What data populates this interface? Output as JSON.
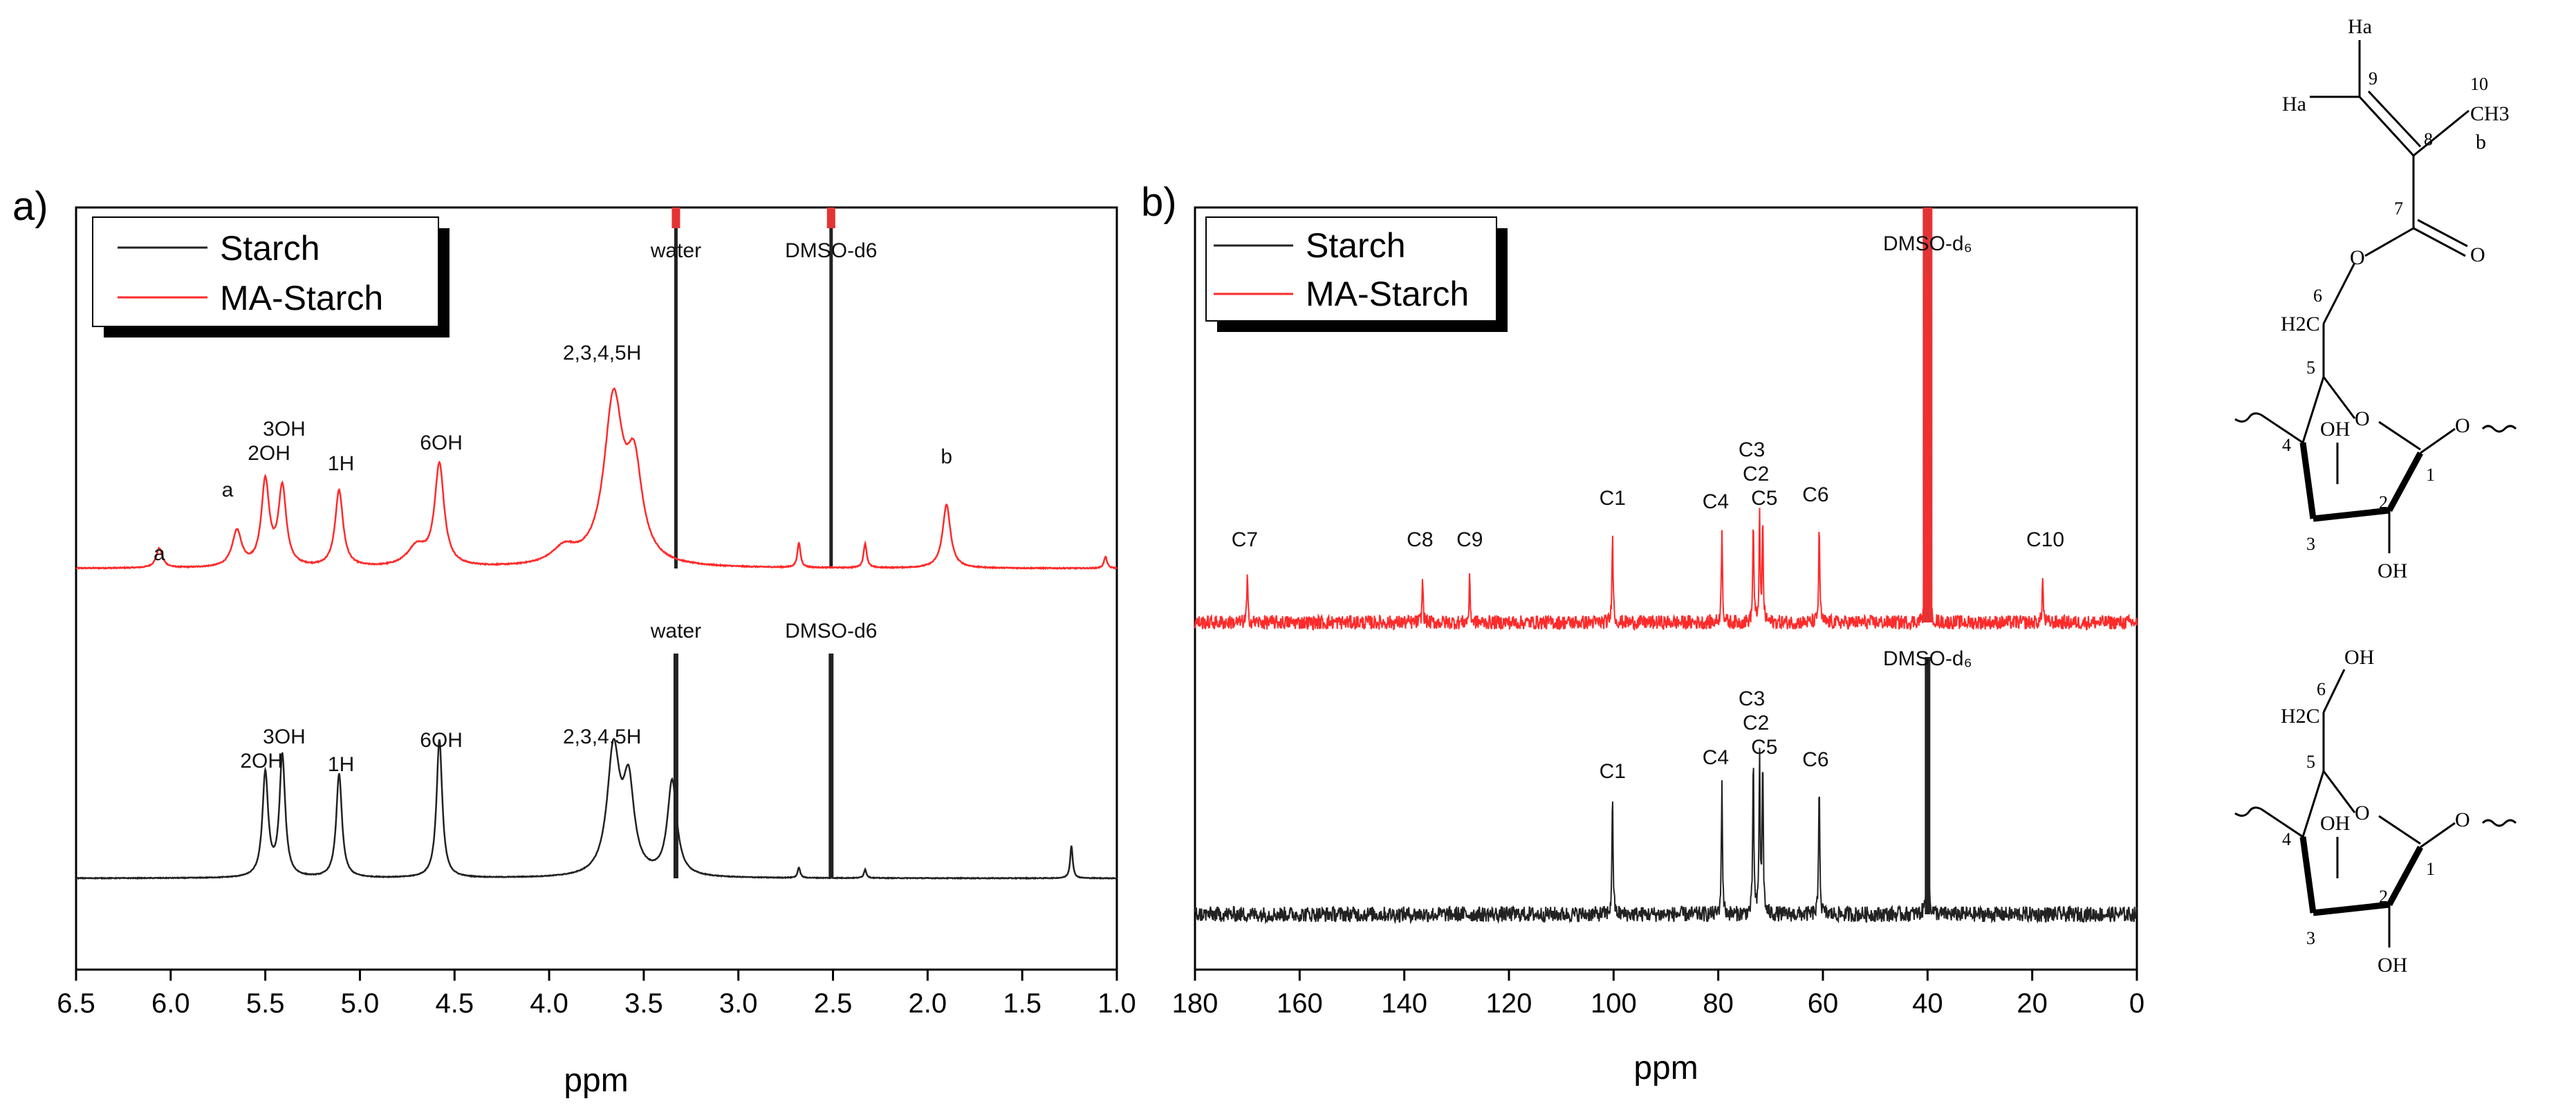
{
  "colors": {
    "starch": "#222222",
    "ma_starch": "#ff2a2a",
    "solvent_band": "#e33434",
    "frame": "#000000"
  },
  "chart_data": [
    {
      "type": "line",
      "panel_label": "a)",
      "xlabel": "ppm",
      "xlim": [
        6.5,
        1.0
      ],
      "x_reversed": true,
      "x_ticks": [
        "6.5",
        "6.0",
        "5.5",
        "5.0",
        "4.5",
        "4.0",
        "3.5",
        "3.0",
        "2.5",
        "2.0",
        "1.5",
        "1.0"
      ],
      "x_tick_values": [
        6.5,
        6.0,
        5.5,
        5.0,
        4.5,
        4.0,
        3.5,
        3.0,
        2.5,
        2.0,
        1.5,
        1.0
      ],
      "legend": [
        {
          "label": "Starch",
          "series": "starch"
        },
        {
          "label": "MA-Starch",
          "series": "ma_starch"
        }
      ],
      "solvent_markers": [
        {
          "ppm": 3.33,
          "label": "water"
        },
        {
          "ppm": 2.51,
          "label": "DMSO-d6"
        }
      ],
      "series": [
        {
          "name": "Starch",
          "key": "starch",
          "baseline": 0,
          "peaks": [
            {
              "ppm": 5.5,
              "height": 0.6,
              "width": 0.018,
              "label": "2OH"
            },
            {
              "ppm": 5.41,
              "height": 0.7,
              "width": 0.018,
              "label": "3OH"
            },
            {
              "ppm": 5.11,
              "height": 0.6,
              "width": 0.018,
              "label": "1H"
            },
            {
              "ppm": 4.58,
              "height": 0.8,
              "width": 0.018,
              "label": "6OH"
            },
            {
              "ppm": 3.66,
              "height": 0.72,
              "width": 0.04,
              "label": "2,3,4,5H"
            },
            {
              "ppm": 3.58,
              "height": 0.5,
              "width": 0.035,
              "label": ""
            },
            {
              "ppm": 3.35,
              "height": 0.55,
              "width": 0.03,
              "label": ""
            },
            {
              "ppm": 2.68,
              "height": 0.06,
              "width": 0.008,
              "label": ""
            },
            {
              "ppm": 2.33,
              "height": 0.05,
              "width": 0.008,
              "label": ""
            },
            {
              "ppm": 1.24,
              "height": 0.19,
              "width": 0.008,
              "label": ""
            }
          ]
        },
        {
          "name": "MA-Starch",
          "key": "ma_starch",
          "baseline": 0,
          "peaks": [
            {
              "ppm": 6.06,
              "height": 0.12,
              "width": 0.02,
              "label": "a"
            },
            {
              "ppm": 5.65,
              "height": 0.22,
              "width": 0.03,
              "label": "a"
            },
            {
              "ppm": 5.5,
              "height": 0.52,
              "width": 0.025,
              "label": "2OH"
            },
            {
              "ppm": 5.41,
              "height": 0.48,
              "width": 0.025,
              "label": "3OH"
            },
            {
              "ppm": 5.11,
              "height": 0.47,
              "width": 0.025,
              "label": "1H"
            },
            {
              "ppm": 4.58,
              "height": 0.62,
              "width": 0.03,
              "label": "6OH"
            },
            {
              "ppm": 4.7,
              "height": 0.12,
              "width": 0.06,
              "label": ""
            },
            {
              "ppm": 3.66,
              "height": 1.0,
              "width": 0.06,
              "label": "2,3,4,5H"
            },
            {
              "ppm": 3.55,
              "height": 0.55,
              "width": 0.05,
              "label": ""
            },
            {
              "ppm": 3.92,
              "height": 0.1,
              "width": 0.08,
              "label": ""
            },
            {
              "ppm": 2.68,
              "height": 0.15,
              "width": 0.01,
              "label": ""
            },
            {
              "ppm": 2.33,
              "height": 0.15,
              "width": 0.01,
              "label": ""
            },
            {
              "ppm": 1.9,
              "height": 0.39,
              "width": 0.025,
              "label": "b"
            },
            {
              "ppm": 1.06,
              "height": 0.07,
              "width": 0.01,
              "label": ""
            }
          ]
        }
      ],
      "peak_labels": [
        {
          "series": "ma_starch",
          "ppm": 6.06,
          "text": "a"
        },
        {
          "series": "ma_starch",
          "ppm": 5.7,
          "text": "a"
        },
        {
          "series": "ma_starch",
          "ppm": 5.48,
          "text": "2OH"
        },
        {
          "series": "ma_starch",
          "ppm": 5.4,
          "text": "3OH"
        },
        {
          "series": "ma_starch",
          "ppm": 5.1,
          "text": "1H"
        },
        {
          "series": "ma_starch",
          "ppm": 4.57,
          "text": "6OH"
        },
        {
          "series": "ma_starch",
          "ppm": 3.72,
          "text": "2,3,4,5H"
        },
        {
          "series": "ma_starch",
          "ppm": 1.9,
          "text": "b"
        },
        {
          "series": "starch",
          "ppm": 5.52,
          "text": "2OH"
        },
        {
          "series": "starch",
          "ppm": 5.4,
          "text": "3OH"
        },
        {
          "series": "starch",
          "ppm": 5.1,
          "text": "1H"
        },
        {
          "series": "starch",
          "ppm": 4.57,
          "text": "6OH"
        },
        {
          "series": "starch",
          "ppm": 3.72,
          "text": "2,3,4,5H"
        }
      ]
    },
    {
      "type": "line",
      "panel_label": "b)",
      "xlabel": "ppm",
      "xlim": [
        180,
        0
      ],
      "x_reversed": true,
      "x_ticks": [
        "180",
        "160",
        "140",
        "120",
        "100",
        "80",
        "60",
        "40",
        "20",
        "0"
      ],
      "x_tick_values": [
        180,
        160,
        140,
        120,
        100,
        80,
        60,
        40,
        20,
        0
      ],
      "legend": [
        {
          "label": "Starch",
          "series": "starch"
        },
        {
          "label": "MA-Starch",
          "series": "ma_starch"
        }
      ],
      "solvent_markers": [
        {
          "ppm": 40.0,
          "label": "DMSO-d₆"
        }
      ],
      "series": [
        {
          "name": "MA-Starch",
          "key": "ma_starch",
          "peaks": [
            {
              "ppm": 170.0,
              "height": 0.28,
              "label": "C7"
            },
            {
              "ppm": 136.5,
              "height": 0.28,
              "label": "C8"
            },
            {
              "ppm": 127.5,
              "height": 0.28,
              "label": "C9"
            },
            {
              "ppm": 100.2,
              "height": 0.62,
              "label": "C1"
            },
            {
              "ppm": 79.3,
              "height": 0.62,
              "label": "C4"
            },
            {
              "ppm": 73.3,
              "height": 0.65,
              "label": "C3"
            },
            {
              "ppm": 72.1,
              "height": 0.65,
              "label": "C2"
            },
            {
              "ppm": 71.5,
              "height": 0.62,
              "label": "C5"
            },
            {
              "ppm": 60.7,
              "height": 0.62,
              "label": "C6"
            },
            {
              "ppm": 40.0,
              "height": 2.4,
              "label": ""
            },
            {
              "ppm": 18.0,
              "height": 0.28,
              "label": "C10"
            }
          ]
        },
        {
          "name": "Starch",
          "key": "starch",
          "peaks": [
            {
              "ppm": 100.2,
              "height": 0.72,
              "label": "C1"
            },
            {
              "ppm": 79.3,
              "height": 0.8,
              "label": "C4"
            },
            {
              "ppm": 73.3,
              "height": 0.93,
              "label": "C3"
            },
            {
              "ppm": 72.1,
              "height": 0.93,
              "label": "C2"
            },
            {
              "ppm": 71.5,
              "height": 0.9,
              "label": "C5"
            },
            {
              "ppm": 60.7,
              "height": 0.8,
              "label": "C6"
            },
            {
              "ppm": 40.0,
              "height": 1.5,
              "label": ""
            }
          ]
        }
      ],
      "peak_labels": [
        {
          "series": "ma_starch",
          "ppm": 170.5,
          "text": "C7"
        },
        {
          "series": "ma_starch",
          "ppm": 137.0,
          "text": "C8"
        },
        {
          "series": "ma_starch",
          "ppm": 127.5,
          "text": "C9"
        },
        {
          "series": "ma_starch",
          "ppm": 100.2,
          "text": "C1"
        },
        {
          "series": "ma_starch",
          "ppm": 80.5,
          "text": "C4"
        },
        {
          "series": "ma_starch",
          "ppm": 73.6,
          "text": "C3"
        },
        {
          "series": "ma_starch",
          "ppm": 72.8,
          "text": "C2"
        },
        {
          "series": "ma_starch",
          "ppm": 71.2,
          "text": "C5"
        },
        {
          "series": "ma_starch",
          "ppm": 61.4,
          "text": "C6"
        },
        {
          "series": "ma_starch",
          "ppm": 17.5,
          "text": "C10"
        },
        {
          "series": "starch",
          "ppm": 100.2,
          "text": "C1"
        },
        {
          "series": "starch",
          "ppm": 80.5,
          "text": "C4"
        },
        {
          "series": "starch",
          "ppm": 73.6,
          "text": "C3"
        },
        {
          "series": "starch",
          "ppm": 72.8,
          "text": "C2"
        },
        {
          "series": "starch",
          "ppm": 71.2,
          "text": "C5"
        },
        {
          "series": "starch",
          "ppm": 61.4,
          "text": "C6"
        }
      ]
    }
  ],
  "structures": {
    "ma_starch": {
      "atoms": [
        "Ha",
        "Ha",
        "9",
        "8",
        "10",
        "CH3",
        "b",
        "7",
        "O",
        "O",
        "6",
        "H2C",
        "5",
        "4",
        "3",
        "2",
        "1",
        "OH",
        "OH",
        "O",
        "O"
      ]
    },
    "starch": {
      "atoms": [
        "OH",
        "6",
        "H2C",
        "5",
        "4",
        "3",
        "2",
        "1",
        "OH",
        "OH",
        "O",
        "O"
      ]
    }
  }
}
